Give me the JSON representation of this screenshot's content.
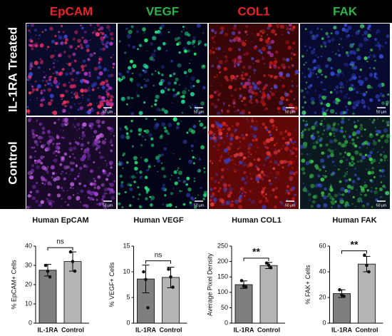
{
  "panels": {
    "columns": [
      "EpCAM",
      "VEGF",
      "COL1",
      "FAK"
    ],
    "column_colors": [
      "#e8242a",
      "#2db34a",
      "#e8242a",
      "#2db34a"
    ],
    "rows": [
      "IL-1RA Treated",
      "Control"
    ],
    "scale_label": "50 µm"
  },
  "chart_data": [
    {
      "type": "bar",
      "title": "Human EpCAM",
      "ylabel": "% EpCAM+ Cells",
      "categories": [
        "IL-1RA",
        "Control"
      ],
      "values": [
        27.5,
        32
      ],
      "errors": [
        3,
        5
      ],
      "points": [
        [
          30,
          27,
          24
        ],
        [
          37,
          32,
          27
        ]
      ],
      "colors": [
        "#7f7f7f",
        "#b5b5b5"
      ],
      "ylim": [
        0,
        40
      ],
      "yticks": [
        0,
        10,
        20,
        30,
        40
      ],
      "significance": "ns"
    },
    {
      "type": "bar",
      "title": "Human VEGF",
      "ylabel": "% VEGF+ Cells",
      "categories": [
        "IL-1RA",
        "Control"
      ],
      "values": [
        8.6,
        8.9
      ],
      "errors": [
        2.7,
        2
      ],
      "points": [
        [
          10,
          8.5,
          3
        ],
        [
          10.5,
          9,
          7
        ]
      ],
      "colors": [
        "#7f7f7f",
        "#b5b5b5"
      ],
      "ylim": [
        0,
        15
      ],
      "yticks": [
        0,
        5,
        10,
        15
      ],
      "significance": "ns"
    },
    {
      "type": "bar",
      "title": "Human COL1",
      "ylabel": "Average Pixel Density",
      "categories": [
        "IL-1RA",
        "Control"
      ],
      "values": [
        125,
        187
      ],
      "errors": [
        12,
        10
      ],
      "points": [
        [
          138,
          120,
          118
        ],
        [
          195,
          188,
          180
        ]
      ],
      "colors": [
        "#7f7f7f",
        "#b5b5b5"
      ],
      "ylim": [
        0,
        250
      ],
      "yticks": [
        0,
        50,
        100,
        150,
        200,
        250
      ],
      "significance": "**"
    },
    {
      "type": "bar",
      "title": "Human FAK",
      "ylabel": "% FAK+ Cells",
      "categories": [
        "IL-1RA",
        "Control"
      ],
      "values": [
        23,
        46
      ],
      "errors": [
        3,
        6
      ],
      "points": [
        [
          26,
          22,
          21
        ],
        [
          53,
          45,
          40
        ]
      ],
      "colors": [
        "#7f7f7f",
        "#b5b5b5"
      ],
      "ylim": [
        0,
        60
      ],
      "yticks": [
        0,
        20,
        40,
        60
      ],
      "significance": "**"
    }
  ]
}
